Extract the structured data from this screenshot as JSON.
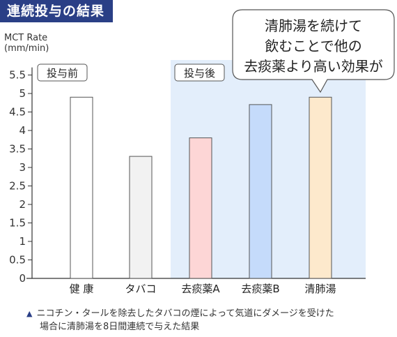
{
  "chart_data": {
    "type": "bar",
    "title": "連続投与の結果",
    "ylabel": "MCT Rate\n(mm/min)",
    "ylim": [
      0,
      5.8
    ],
    "yticks": [
      "0",
      "0.5",
      "1",
      "1.5",
      "2",
      "2.5",
      "3",
      "3.5",
      "4",
      "4.5",
      "5",
      "5.5"
    ],
    "categories": [
      "健 康",
      "タバコ",
      "去痰薬A",
      "去痰薬B",
      "清肺湯"
    ],
    "values": [
      4.9,
      3.3,
      3.8,
      4.7,
      4.9
    ],
    "colors": [
      "#ffffff",
      "#f2f2f2",
      "#fdd6d6",
      "#c5dbfb",
      "#fde9cc"
    ],
    "group_labels": [
      "投与前",
      "投与後"
    ],
    "post_region_color": "#e3eefb",
    "callout": "清肺湯を続けて\n飲むことで他の\n去痰薬より高い効果が"
  },
  "footnote": {
    "marker": "▲",
    "line1": "ニコチン・タールを除去したタバコの煙によって気道にダメージを受けた",
    "line2": "場合に清肺湯を8日間連続で与えた結果"
  }
}
